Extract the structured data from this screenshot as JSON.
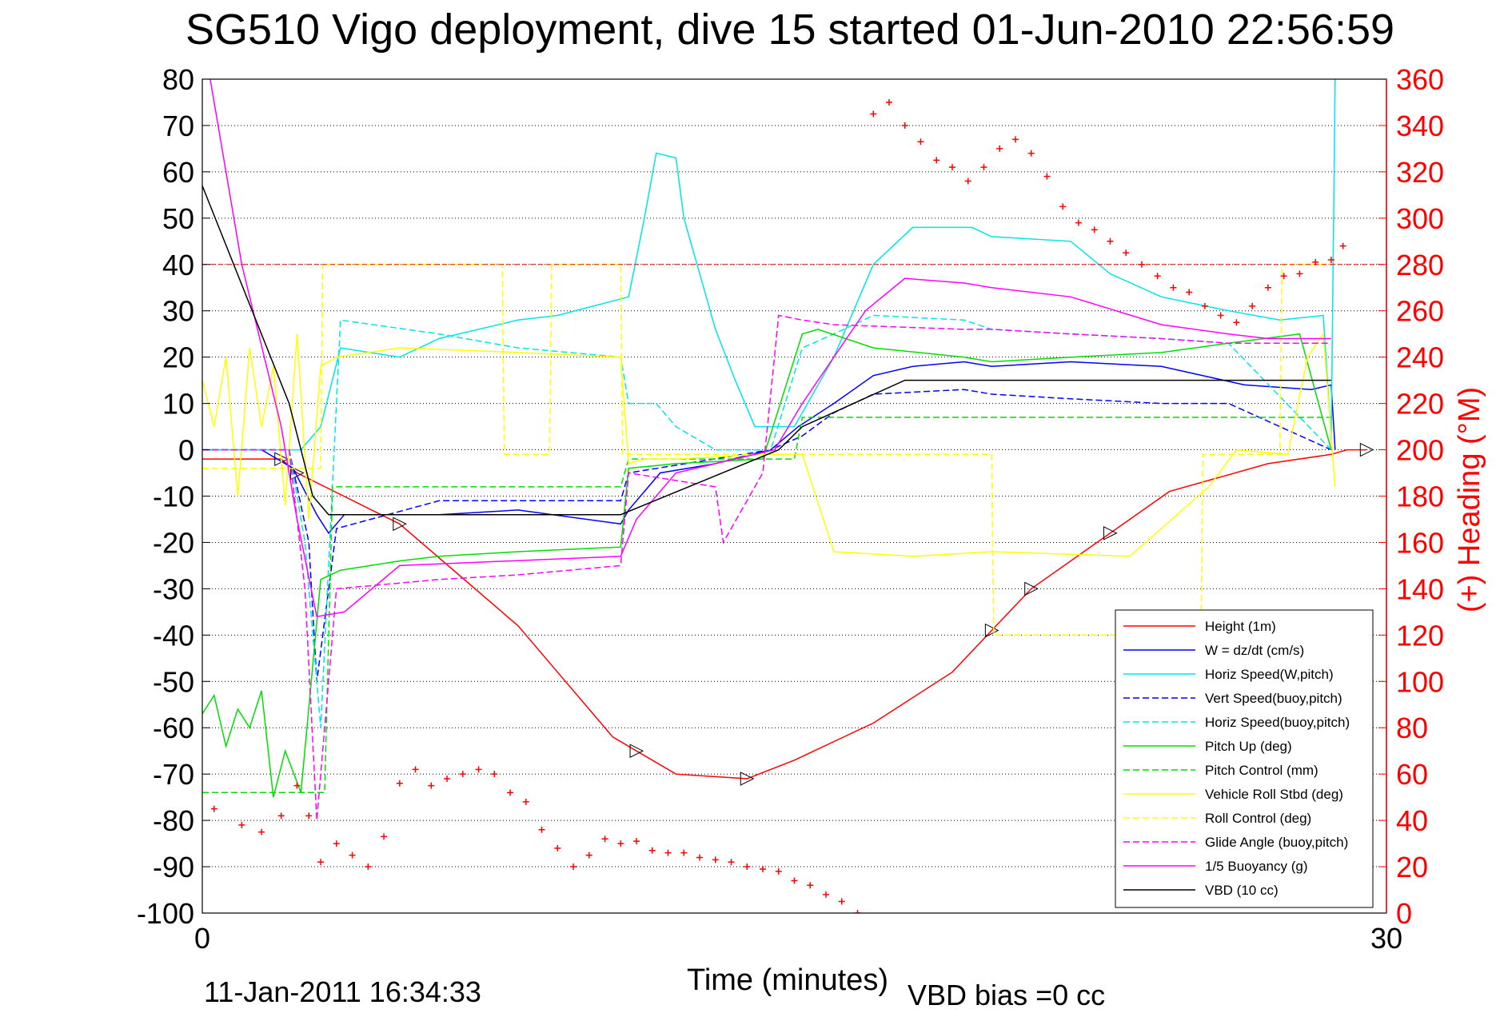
{
  "chart_data": {
    "type": "line",
    "title": "SG510 Vigo deployment, dive 15 started 01-Jun-2010 22:56:59",
    "xlabel": "Time (minutes)",
    "ylabel_right": "(+) Heading (°M)",
    "xlim": [
      0,
      30
    ],
    "ylim": [
      -100,
      80
    ],
    "ylim_right": [
      0,
      360
    ],
    "x_ticks": [
      "0",
      "30"
    ],
    "y_ticks": [
      "80",
      "70",
      "60",
      "50",
      "40",
      "30",
      "20",
      "10",
      "0",
      "-10",
      "-20",
      "-30",
      "-40",
      "-50",
      "-60",
      "-70",
      "-80",
      "-90",
      "-100"
    ],
    "y_right_ticks": [
      "360",
      "340",
      "320",
      "300",
      "280",
      "260",
      "240",
      "220",
      "200",
      "180",
      "160",
      "140",
      "120",
      "100",
      "80",
      "60",
      "40",
      "20",
      "0"
    ],
    "grid": true,
    "legend_position": "bottom-right",
    "footer_date": "11-Jan-2011 16:34:33",
    "footer_note": "VBD bias =0 cc",
    "colors": {
      "height": "#ff0000",
      "w": "#0000ff",
      "hspd_w": "#00e5e5",
      "vspd_buoy": "#0000ff",
      "hspd_buoy": "#00e5e5",
      "pitch": "#00dd00",
      "pitch_ctl": "#00dd00",
      "roll": "#ffff00",
      "roll_ctl": "#ffff00",
      "glide": "#ff00ff",
      "buoy": "#ff00ff",
      "vbd": "#000000",
      "heading": "#ff0000"
    },
    "series": [
      {
        "name": "Height (1m)",
        "style": "solid",
        "color": "#ff0000",
        "x": [
          0.0,
          2.0,
          2.4,
          5,
          6.5,
          8,
          9,
          10.4,
          11,
          12,
          13.8,
          15,
          17,
          19,
          20,
          21,
          23,
          24.5,
          27,
          28.6,
          29.0,
          29.5
        ],
        "y": [
          -2,
          -2,
          -5,
          -16,
          -27,
          -38,
          -48,
          -62,
          -65,
          -70,
          -71,
          -67,
          -59,
          -48,
          -39,
          -30,
          -18,
          -9,
          -3,
          -1,
          0,
          0
        ]
      },
      {
        "name": "W = dz/dt (cm/s)",
        "style": "solid",
        "color": "#0000ff",
        "x": [
          0.0,
          1.5,
          2.3,
          2.9,
          3.2,
          3.6,
          6,
          8,
          10.6,
          10.8,
          11.6,
          13,
          13.9,
          14.4,
          15.1,
          16,
          17,
          18,
          19.3,
          20,
          22,
          24.3,
          26.4,
          28.1,
          28.6,
          28.7
        ],
        "y": [
          0,
          0,
          -4,
          -14,
          -18,
          -14,
          -14,
          -13,
          -16,
          -13,
          -5,
          -3,
          -1,
          0,
          5,
          10,
          16,
          18,
          19,
          18,
          19,
          18,
          14,
          13,
          14,
          0
        ]
      },
      {
        "name": "Horiz Speed(W,pitch)",
        "style": "solid",
        "color": "#00e5e5",
        "x": [
          0.0,
          2.5,
          3.0,
          3.5,
          5,
          6,
          8,
          9,
          10.8,
          11.2,
          11.5,
          12,
          12.2,
          13,
          13.5,
          14,
          15,
          16,
          17,
          18,
          19.5,
          20,
          22,
          23,
          24.3,
          26,
          27.3,
          28.4,
          28.6,
          28.7
        ],
        "y": [
          0,
          0,
          5,
          22,
          20,
          24,
          28,
          29,
          33,
          50,
          64,
          63,
          50,
          26,
          15,
          5,
          5,
          20,
          40,
          48,
          48,
          46,
          45,
          38,
          33,
          30,
          28,
          29,
          2,
          80
        ]
      },
      {
        "name": "Vert Speed(buoy,pitch)",
        "style": "dash",
        "color": "#0000ff",
        "x": [
          0.0,
          2.2,
          2.7,
          2.9,
          3.4,
          6,
          10.6,
          10.8,
          14.4,
          15.2,
          16,
          17,
          19.3,
          20,
          22,
          24.3,
          26,
          28.6
        ],
        "y": [
          0,
          0,
          -20,
          -50,
          -17,
          -11,
          -11,
          -5,
          0,
          3,
          8,
          12,
          13,
          12,
          11,
          10,
          10,
          0
        ]
      },
      {
        "name": "Horiz Speed(buoy,pitch)",
        "style": "dash",
        "color": "#00e5e5",
        "x": [
          0.0,
          2.2,
          2.6,
          3.0,
          3.5,
          6,
          8,
          10.6,
          10.8,
          11.5,
          12,
          13,
          14,
          14.4,
          15.2,
          16,
          17,
          19.3,
          20,
          22,
          24.3,
          26,
          28.6
        ],
        "y": [
          0,
          0,
          -20,
          -60,
          28,
          25,
          22,
          20,
          10,
          10,
          5,
          0,
          0,
          0,
          22,
          25,
          29,
          28,
          26,
          25,
          24,
          23,
          0
        ]
      },
      {
        "name": "Pitch Up (deg)",
        "style": "solid",
        "color": "#00dd00",
        "x": [
          0.0,
          0.3,
          0.6,
          0.9,
          1.2,
          1.5,
          1.8,
          2.1,
          2.5,
          3.0,
          3.5,
          5,
          6,
          8,
          10.6,
          10.8,
          12,
          14.2,
          15.2,
          15.6,
          17,
          19.3,
          20,
          22,
          24.3,
          26,
          27.8,
          28.6
        ],
        "y": [
          -57,
          -53,
          -64,
          -56,
          -60,
          -52,
          -75,
          -65,
          -74,
          -28,
          -26,
          -24,
          -23,
          -22,
          -21,
          -4,
          -3,
          -2,
          25,
          26,
          22,
          20,
          19,
          20,
          21,
          23,
          25,
          0
        ]
      },
      {
        "name": "Pitch Control (mm)",
        "style": "dash",
        "color": "#00dd00",
        "x": [
          0.0,
          2.5,
          3.1,
          3.3,
          10.6,
          10.8,
          15.0,
          15.2,
          28.6
        ],
        "y": [
          -74,
          -74,
          -74,
          -8,
          -8,
          -2,
          -2,
          7,
          7
        ]
      },
      {
        "name": "Vehicle Roll Stbd (deg)",
        "style": "solid",
        "color": "#ffff00",
        "x": [
          0.0,
          0.3,
          0.6,
          0.9,
          1.2,
          1.5,
          1.8,
          2.1,
          2.4,
          2.7,
          3.0,
          3.4,
          5,
          8,
          10.6,
          10.8,
          11.2,
          12,
          14.2,
          15.2,
          16,
          18,
          20,
          23.5,
          25.5,
          26.2,
          27.5,
          28.0,
          28.4,
          28.7
        ],
        "y": [
          15,
          5,
          20,
          -10,
          22,
          5,
          18,
          -12,
          25,
          -15,
          18,
          20,
          22,
          21,
          20,
          -3,
          -2,
          -2,
          -1,
          -1,
          -22,
          -23,
          -22,
          -23,
          -8,
          0,
          -1,
          20,
          25,
          -8
        ]
      },
      {
        "name": "Roll Control (deg)",
        "style": "dash",
        "color": "#ffff00",
        "x": [
          0.0,
          3.0,
          3.05,
          7.6,
          7.65,
          8.8,
          8.85,
          10.6,
          10.65,
          13.0,
          13.05,
          15.0,
          15.05,
          20.0,
          20.05,
          25.3,
          25.35,
          27.3,
          27.35,
          28.6
        ],
        "y": [
          -4,
          -4,
          40,
          40,
          -1,
          -1,
          40,
          40,
          -1,
          -1,
          -1,
          -1,
          -1,
          -1,
          -40,
          -40,
          -1,
          -1,
          40,
          40
        ]
      },
      {
        "name": "Glide Angle (buoy,pitch)",
        "style": "dash",
        "color": "#ff00ff",
        "x": [
          0.0,
          2.2,
          2.6,
          2.9,
          3.4,
          6,
          8,
          10.6,
          10.8,
          13,
          13.2,
          14.2,
          14.6,
          15.2,
          16,
          19.3,
          20,
          22,
          24.3,
          26,
          28.6
        ],
        "y": [
          0,
          0,
          -30,
          -80,
          -30,
          -28,
          -27,
          -25,
          -5,
          -8,
          -20,
          -5,
          29,
          28,
          27,
          26,
          26,
          25,
          24,
          23,
          23
        ]
      },
      {
        "name": "1/5 Buoyancy (g)",
        "style": "solid",
        "color": "#ff00ff",
        "x": [
          0.0,
          0.2,
          1.0,
          2.0,
          2.4,
          2.9,
          3.6,
          5,
          10.6,
          11.0,
          12.0,
          14.5,
          15.2,
          16,
          16.8,
          17.8,
          19.3,
          20,
          22,
          24.3,
          26,
          27,
          28.6
        ],
        "y": [
          100,
          80,
          40,
          5,
          -15,
          -36,
          -35,
          -25,
          -23,
          -15,
          -5,
          0,
          10,
          20,
          30,
          37,
          36,
          35,
          33,
          27,
          25,
          24,
          24
        ]
      },
      {
        "name": "VBD (10 cc)",
        "style": "solid",
        "color": "#000000",
        "x": [
          0.0,
          2.2,
          2.8,
          3.2,
          10.6,
          14.6,
          15.2,
          16.5,
          17.8,
          19.3,
          28.6
        ],
        "y": [
          57,
          10,
          -10,
          -14,
          -14,
          0,
          5,
          10,
          15,
          15,
          15
        ]
      },
      {
        "name": "Heading",
        "style": "marker",
        "color": "#ff0000",
        "x": [
          0.3,
          1.0,
          1.5,
          2.0,
          2.4,
          2.7,
          3.0,
          3.4,
          3.8,
          4.2,
          4.6,
          5,
          5.4,
          5.8,
          6.2,
          6.6,
          7.0,
          7.4,
          7.8,
          8.2,
          8.6,
          9.0,
          9.4,
          9.8,
          10.2,
          10.6,
          11.0,
          11.4,
          11.8,
          12.2,
          12.6,
          13.0,
          13.4,
          13.8,
          14.2,
          14.6,
          15.0,
          15.4,
          15.8,
          16.2,
          16.6,
          17.0,
          17.4,
          17.8,
          18.2,
          18.6,
          19.0,
          19.4,
          19.8,
          20.2,
          20.6,
          21.0,
          21.4,
          21.8,
          22.2,
          22.6,
          23.0,
          23.4,
          23.8,
          24.2,
          24.6,
          25.0,
          25.4,
          25.8,
          26.2,
          26.6,
          27.0,
          27.4,
          27.8,
          28.2,
          28.6,
          28.9
        ],
        "y": [
          45,
          38,
          35,
          42,
          55,
          42,
          22,
          30,
          25,
          20,
          33,
          56,
          62,
          55,
          58,
          60,
          62,
          60,
          52,
          48,
          36,
          28,
          20,
          25,
          32,
          30,
          31,
          27,
          26,
          26,
          24,
          23,
          22,
          20,
          19,
          18,
          14,
          12,
          8,
          5,
          0,
          345,
          350,
          340,
          333,
          325,
          322,
          316,
          322,
          330,
          334,
          328,
          318,
          305,
          298,
          295,
          290,
          285,
          280,
          275,
          270,
          268,
          262,
          258,
          255,
          262,
          270,
          275,
          276,
          281,
          282,
          288
        ]
      }
    ]
  }
}
